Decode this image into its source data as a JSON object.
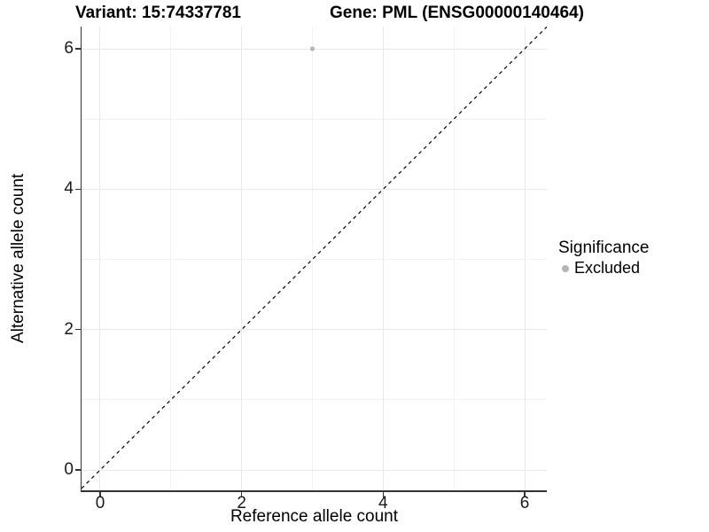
{
  "chart_data": {
    "type": "scatter",
    "title_left": "Variant: 15:74337781",
    "title_right": "Gene: PML (ENSG00000140464)",
    "xlabel": "Reference allele count",
    "ylabel": "Alternative allele count",
    "xlim": [
      -0.263,
      6.313
    ],
    "ylim": [
      -0.29,
      6.316
    ],
    "x_ticks": [
      0,
      2,
      4,
      6
    ],
    "y_ticks": [
      0,
      2,
      4,
      6
    ],
    "x_minor_ticks": [
      1,
      3,
      5
    ],
    "y_minor_ticks": [
      1,
      3,
      5
    ],
    "grid": true,
    "points": [
      {
        "x": 3,
        "y": 6,
        "series": "Excluded"
      }
    ],
    "identity_line": {
      "slope": 1,
      "intercept": 0,
      "style": "dashed",
      "color": "#000000"
    },
    "legend": {
      "position": "right",
      "title": "Significance",
      "items": [
        {
          "label": "Excluded",
          "color": "#b5b5b5",
          "marker": "circle"
        }
      ]
    },
    "colors": {
      "point": "#b5b5b5",
      "grid_major": "#e9e9e9",
      "grid_minor": "#f2f2f2",
      "axis": "#333333",
      "text": "#000000"
    }
  }
}
